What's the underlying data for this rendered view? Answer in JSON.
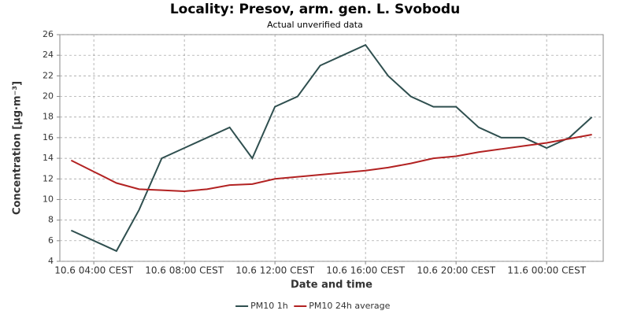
{
  "chart_data": {
    "type": "line",
    "title": "Locality: Presov, arm. gen. L. Svobodu",
    "subtitle": "Actual unverified data",
    "x_label": "Date and time",
    "y_label": "Concentration [µg·m⁻³]",
    "categories": [
      null,
      "10.6 04:00 CEST",
      null,
      null,
      null,
      "10.6 08:00 CEST",
      null,
      null,
      null,
      "10.6 12:00 CEST",
      null,
      null,
      null,
      "10.6 16:00 CEST",
      null,
      null,
      null,
      "10.6 20:00 CEST",
      null,
      null,
      null,
      "11.6 00:00 CEST",
      null,
      null
    ],
    "series": [
      {
        "name": "PM10 1h",
        "color": "#2f4f4f",
        "values": [
          7,
          6,
          5,
          9,
          14,
          15,
          16,
          17,
          14,
          19,
          20,
          23,
          24,
          25,
          22,
          20,
          19,
          19,
          17,
          16,
          16,
          15,
          16,
          18
        ]
      },
      {
        "name": "PM10 24h average",
        "color": "#b22222",
        "values": [
          13.8,
          12.7,
          11.6,
          11.0,
          10.9,
          10.8,
          11.0,
          11.4,
          11.5,
          12.0,
          12.2,
          12.4,
          12.6,
          12.8,
          13.1,
          13.5,
          14.0,
          14.2,
          14.6,
          14.9,
          15.2,
          15.5,
          15.9,
          16.3
        ]
      }
    ],
    "ylim": [
      4,
      26
    ],
    "yticks": [
      4,
      6,
      8,
      10,
      12,
      14,
      16,
      18,
      20,
      22,
      24,
      26
    ],
    "grid": true,
    "legend": "bottom"
  }
}
